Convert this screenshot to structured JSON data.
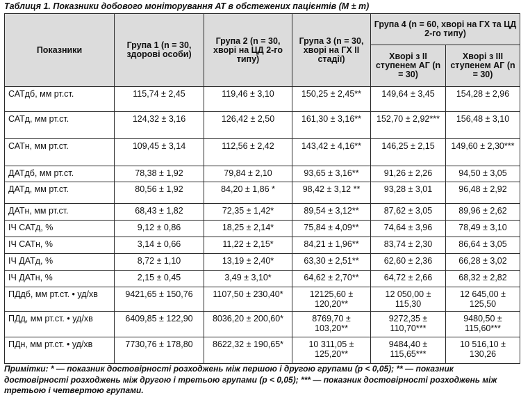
{
  "caption": "Таблиця 1. Показники добового моніторування АТ в обстежених пацієнтів (M ± m)",
  "header": {
    "indicator": "Показники",
    "group1": "Група 1 (n = 30, здорові особи)",
    "group2": "Група 2 (n = 30, хворі на ЦД 2-го типу)",
    "group3": "Група 3 (n = 30, хворі на ГХ II стадії)",
    "group4": "Група 4 (n = 60, хворі на ГХ та ЦД 2-го типу)",
    "group4a": "Хворі з II ступенем АГ (n = 30)",
    "group4b": "Хворі з III ступенем АГ (n = 30)"
  },
  "rows": [
    [
      "САТдб, мм рт.ст.",
      "115,74 ± 2,45",
      "119,46 ± 3,10",
      "150,25 ± 2,45**",
      "149,64 ± 3,45",
      "154,28 ± 2,96"
    ],
    [
      "САТд, мм рт.ст.",
      "124,32 ± 3,16",
      "126,42 ± 2,50",
      "161,30 ± 3,16**",
      "152,70 ± 2,92***",
      "156,48 ± 3,10"
    ],
    [
      "САТн, мм рт.ст.",
      "109,45 ± 3,14",
      "112,56 ± 2,42",
      "143,42 ± 4,16**",
      "146,25 ± 2,15",
      "149,60 ± 2,30***"
    ],
    [
      "ДАТдб, мм рт.ст.",
      "78,38 ± 1,92",
      "79,84 ± 2,10",
      "93,65 ± 3,16**",
      "91,26 ± 2,26",
      "94,50 ± 3,05"
    ],
    [
      "ДАТд, мм рт.ст.",
      "80,56 ± 1,92",
      "84,20 ± 1,86 *",
      "98,42 ± 3,12 **",
      "93,28 ± 3,01",
      "96,48 ± 2,92"
    ],
    [
      "ДАТн, мм рт.ст.",
      "68,43 ± 1,82",
      "72,35 ± 1,42*",
      "89,54 ± 3,12**",
      "87,62 ± 3,05",
      "89,96 ± 2,62"
    ],
    [
      "ІЧ САТд, %",
      "9,12 ± 0,86",
      "18,25 ± 2,14*",
      "75,84 ± 4,09**",
      "74,64 ± 3,96",
      "78,49 ± 3,10"
    ],
    [
      "ІЧ САТн, %",
      "3,14 ± 0,66",
      "11,22 ± 2,15*",
      "84,21 ± 1,96**",
      "83,74 ± 2,30",
      "86,64 ± 3,05"
    ],
    [
      "ІЧ ДАТд, %",
      "8,72 ± 1,10",
      "13,19 ± 2,40*",
      "63,30 ± 2,51**",
      "62,60 ± 2,36",
      "66,28 ± 3,02"
    ],
    [
      "ІЧ ДАТн, %",
      "2,15 ± 0,45",
      "3,49 ± 3,10*",
      "64,62 ± 2,70**",
      "64,72 ± 2,66",
      "68,32 ± 2,82"
    ],
    [
      "ПДдб, мм рт.ст. • уд/хв",
      "9421,65 ± 150,76",
      "1107,50 ± 230,40*",
      "12125,60 ± 120,20**",
      "12 050,00 ± 115,30",
      "12 645,00 ± 125,50"
    ],
    [
      "ПДд, мм рт.ст. • уд/хв",
      "6409,85 ± 122,90",
      "8036,20 ± 200,60*",
      "8769,70 ± 103,20**",
      "9272,35 ± 110,70***",
      "9480,50 ± 115,60***"
    ],
    [
      "ПДн, мм рт.ст. • уд/хв",
      "7730,76 ± 178,80",
      "8622,32 ± 190,65*",
      "10 311,05 ± 125,20**",
      "9484,40 ± 115,65***",
      "10 516,10 ± 130,26"
    ]
  ],
  "notes": "Примітки: * — показник достовірності розходжень між першою і другою групами (p < 0,05); ** — показник достовірності розходжень між другою і третьою групами (p < 0,05); *** — показник достовірності розходжень між третьою і четвертою групами."
}
